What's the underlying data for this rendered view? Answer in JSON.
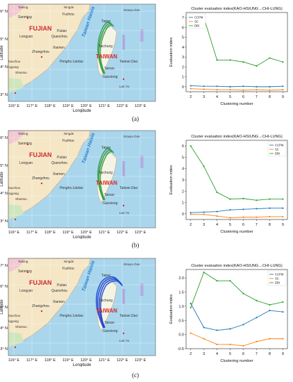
{
  "maps": [
    {
      "id": "a",
      "caption": "(a)",
      "lat_labels": [
        "26° N",
        "25° N",
        "24° N",
        "23° N"
      ],
      "lon_labels": [
        "116° E",
        "117° E",
        "118° E",
        "119° E",
        "120° E",
        "121° E",
        "122° E",
        "123° E"
      ],
      "axis_y": "Latitude",
      "axis_x": "Longitude",
      "place_labels": {
        "fujian": "FUJIAN",
        "taiwan": "TAIWAN",
        "strait": "Taiwan Haixia",
        "taiwan_dao": "Taiwan Dao",
        "penghu": "Penghu Liedao",
        "diaoyu": "Diaoyu Dao",
        "lan_yu": "Lan Yu",
        "taining": "Taining",
        "ningde": "Ningde",
        "fuzhou": "Fuzhou",
        "sanming": "Sanming",
        "putian": "Putian",
        "quanzhou": "Quanzhou",
        "longyan": "Longyan",
        "xiamen": "Xiamen",
        "zhangzhou": "Zhangzhou",
        "taipei": "Taipei",
        "taichung": "Taichung",
        "tainan": "Tainan",
        "gaoxiong": "Gaoxiong",
        "shantou": "Shantou",
        "chaozhou": "haozhou",
        "ngyang": "ngyang"
      },
      "track_color": "#2e9a3e"
    },
    {
      "id": "b",
      "caption": "(b)",
      "lat_labels": [
        "26° N",
        "25° N",
        "24° N",
        "23° N"
      ],
      "lon_labels": [
        "116° E",
        "117° E",
        "118° E",
        "119° E",
        "120° E",
        "121° E",
        "122° E",
        "123° E"
      ],
      "axis_y": "Latitude",
      "axis_x": "Longitude",
      "place_labels": {
        "fujian": "FUJIAN",
        "taiwan": "TAIWAN",
        "strait": "Taiwan Haixia",
        "taiwan_dao": "Taiwan Dao",
        "penghu": "Penghu Liedao",
        "diaoyu": "Diaoyu Dao",
        "lan_yu": "Lan Yu",
        "taining": "Taining",
        "ningde": "Ningde",
        "fuzhou": "Fuzhou",
        "sanming": "Sanming",
        "putian": "Putian",
        "quanzhou": "Quanzhou",
        "longyan": "Longyan",
        "xiamen": "Xiamen",
        "zhangzhou": "Zhangzhou",
        "taipei": "Taipei",
        "taichung": "Taichung",
        "tainan": "Tainan",
        "gaoxiong": "Gaoxiong",
        "shantou": "Shantou",
        "chaozhou": "haozhou",
        "ngyang": "ngyang"
      },
      "track_color": "#2e9a3e"
    },
    {
      "id": "c",
      "caption": "(c)",
      "lat_labels": [
        "27° N",
        "26° N",
        "25° N",
        "24° N",
        "23° N"
      ],
      "lon_labels": [
        "116° E",
        "117° E",
        "118° E",
        "119° E",
        "120° E",
        "121° E",
        "122° E",
        "123° E"
      ],
      "axis_y": "Latitude",
      "axis_x": "Longitude",
      "place_labels": {
        "fujian": "FUJIAN",
        "taiwan": "TAIWAN",
        "strait": "Taiwan Haixia",
        "taiwan_dao": "Taiwan Dao",
        "penghu": "Penghu Liedao",
        "diaoyu": "Diaoyu Dao",
        "lan_yu": "Lan Yu",
        "taining": "Taining",
        "ningde": "Ningde",
        "fuzhou": "Fuzhou",
        "sanming": "Sanming",
        "putian": "Putian",
        "quanzhou": "Quanzhou",
        "longyan": "Longyan",
        "xiamen": "Xiamen",
        "zhangzhou": "Zhangzhou",
        "taipei": "Taipei",
        "taichung": "Taichung",
        "tainan": "Tainan",
        "gaoxiong": "Gaoxiong",
        "shantou": "Shantou",
        "chaozhou": "haozhou",
        "ngyang": "ngyang"
      },
      "track_color": "#1a3fd0"
    }
  ],
  "chart_data": [
    {
      "type": "line",
      "title": "Cluster evaluation index(KAO-HSIUNG→CHI-LUNG)",
      "xlabel": "Clustering number",
      "ylabel": "Evaluation index",
      "x": [
        2,
        3,
        4,
        5,
        6,
        7,
        8,
        9
      ],
      "xlim": [
        2,
        9
      ],
      "ylim": [
        -0.5,
        7.5
      ],
      "yticks": [
        0,
        1,
        2,
        3,
        4,
        5,
        6,
        7
      ],
      "legend_position": "top-left",
      "series": [
        {
          "name": "CCPM",
          "color": "#1f77b4",
          "values": [
            0.1,
            0.05,
            0.05,
            0.0,
            0.05,
            0.0,
            0.0,
            0.05
          ]
        },
        {
          "name": "SC",
          "color": "#ff7f0e",
          "values": [
            -0.2,
            -0.25,
            -0.3,
            -0.3,
            -0.35,
            -0.3,
            -0.35,
            -0.3
          ]
        },
        {
          "name": "DBI",
          "color": "#2ca02c",
          "values": [
            6.1,
            7.0,
            2.7,
            2.7,
            2.5,
            2.1,
            2.9,
            2.5
          ]
        }
      ]
    },
    {
      "type": "line",
      "title": "Cluster evaluation index(KAO-HSIUNG→CHI-LUNG)",
      "xlabel": "Clustering number",
      "ylabel": "Evaluation index",
      "x": [
        2,
        3,
        4,
        5,
        6,
        7,
        8,
        9
      ],
      "xlim": [
        2,
        9
      ],
      "ylim": [
        -0.5,
        6.5
      ],
      "yticks": [
        0,
        1,
        2,
        3,
        4,
        5,
        6
      ],
      "legend_position": "top-right",
      "series": [
        {
          "name": "CCPM",
          "color": "#1f77b4",
          "values": [
            0.1,
            0.15,
            0.2,
            0.35,
            0.4,
            0.45,
            0.5,
            0.5
          ]
        },
        {
          "name": "SC",
          "color": "#ff7f0e",
          "values": [
            -0.05,
            -0.05,
            -0.2,
            -0.35,
            -0.3,
            -0.3,
            -0.25,
            -0.25
          ]
        },
        {
          "name": "DBI",
          "color": "#2ca02c",
          "values": [
            6.0,
            4.2,
            1.9,
            1.3,
            1.35,
            1.2,
            1.3,
            1.3
          ]
        }
      ]
    },
    {
      "type": "line",
      "title": "Cluster evaluation index(KAO-HSIUNG→CHI-LUNG)",
      "xlabel": "Clustering number",
      "ylabel": "Evaluation index",
      "x": [
        2,
        3,
        4,
        5,
        6,
        7,
        8,
        9
      ],
      "xlim": [
        2,
        9
      ],
      "ylim": [
        -0.5,
        2.3
      ],
      "yticks": [
        -0.5,
        0.0,
        0.5,
        1.0,
        1.5,
        2.0
      ],
      "ytick_labels": [
        "-0.5",
        "0.0",
        "0.5",
        "1.0",
        "1.5",
        "2.0"
      ],
      "legend_position": "top-right",
      "series": [
        {
          "name": "CCPM",
          "color": "#1f77b4",
          "values": [
            1.1,
            0.25,
            0.15,
            0.2,
            0.35,
            0.6,
            0.85,
            0.8
          ]
        },
        {
          "name": "SC",
          "color": "#ff7f0e",
          "values": [
            0.05,
            -0.15,
            -0.35,
            -0.35,
            -0.4,
            -0.25,
            -0.15,
            -0.15
          ]
        },
        {
          "name": "DBI",
          "color": "#2ca02c",
          "values": [
            0.95,
            2.2,
            1.9,
            1.9,
            1.45,
            1.2,
            1.05,
            1.15
          ]
        }
      ]
    }
  ]
}
